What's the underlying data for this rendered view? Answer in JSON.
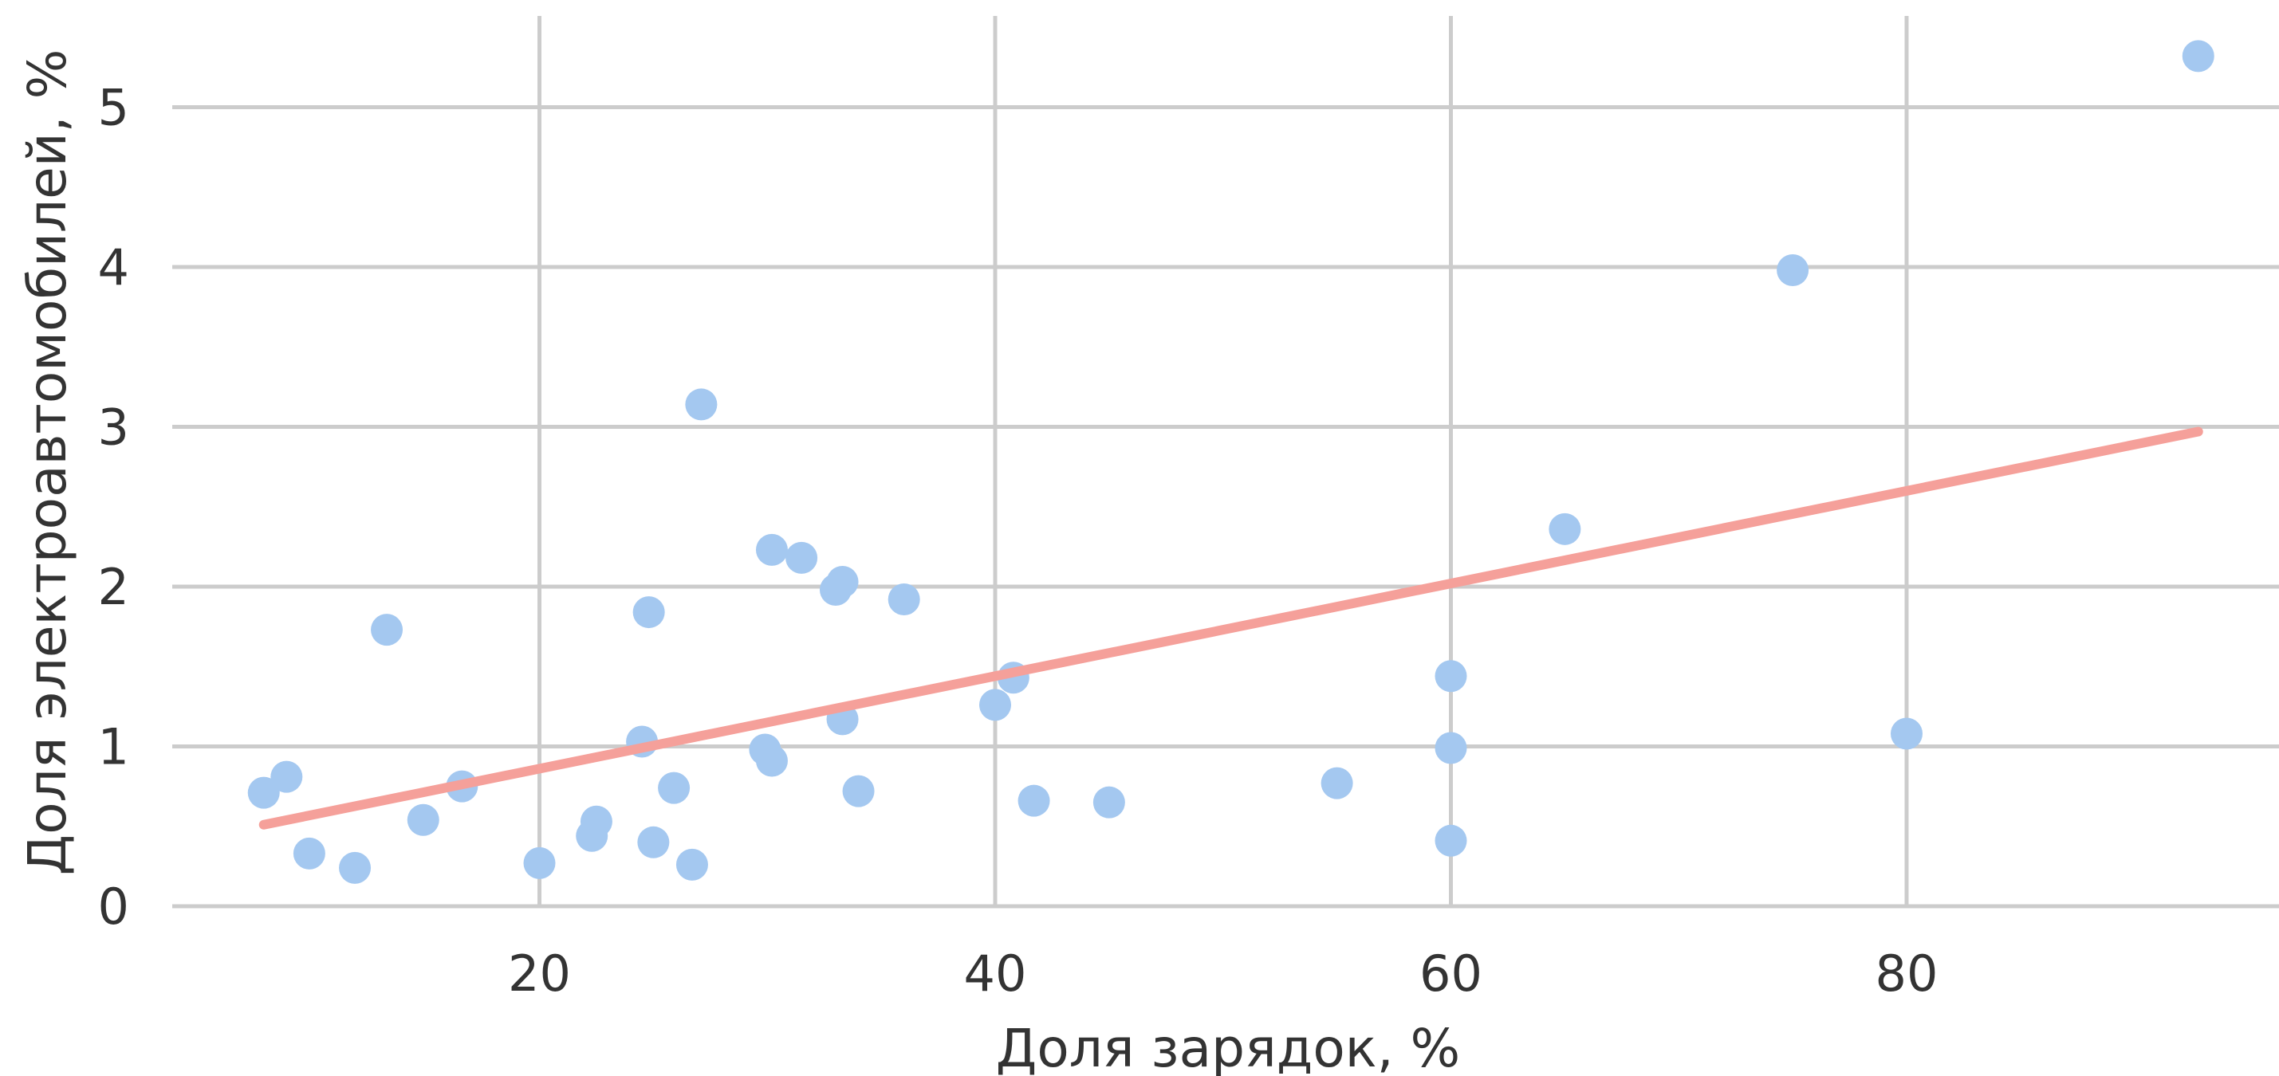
{
  "chart_data": {
    "type": "scatter",
    "title": "",
    "xlabel": "Доля зарядок, %",
    "ylabel": "Доля электроавтомобилей, %",
    "xlim": [
      4,
      96
    ],
    "ylim": [
      0,
      5.5
    ],
    "x_ticks": [
      20,
      40,
      60,
      80
    ],
    "y_ticks": [
      0,
      1,
      2,
      3,
      4,
      5
    ],
    "grid": true,
    "legend": "none",
    "colors": {
      "points": "#a4c8f0",
      "trendline": "#f5a09a",
      "grid": "#cccccc"
    },
    "series": [
      {
        "points": [
          {
            "x": 7.9,
            "y": 0.71
          },
          {
            "x": 8.9,
            "y": 0.81
          },
          {
            "x": 9.9,
            "y": 0.33
          },
          {
            "x": 11.9,
            "y": 0.24
          },
          {
            "x": 13.3,
            "y": 1.73
          },
          {
            "x": 14.9,
            "y": 0.54
          },
          {
            "x": 16.6,
            "y": 0.75
          },
          {
            "x": 20.0,
            "y": 0.27
          },
          {
            "x": 22.3,
            "y": 0.44
          },
          {
            "x": 22.5,
            "y": 0.53
          },
          {
            "x": 24.5,
            "y": 1.03
          },
          {
            "x": 24.8,
            "y": 1.84
          },
          {
            "x": 25.0,
            "y": 0.4
          },
          {
            "x": 25.9,
            "y": 0.74
          },
          {
            "x": 26.7,
            "y": 0.26
          },
          {
            "x": 27.1,
            "y": 3.14
          },
          {
            "x": 29.9,
            "y": 0.98
          },
          {
            "x": 30.2,
            "y": 0.91
          },
          {
            "x": 30.2,
            "y": 2.23
          },
          {
            "x": 31.5,
            "y": 2.18
          },
          {
            "x": 33.0,
            "y": 1.98
          },
          {
            "x": 33.3,
            "y": 2.03
          },
          {
            "x": 33.3,
            "y": 1.17
          },
          {
            "x": 34.0,
            "y": 0.72
          },
          {
            "x": 36.0,
            "y": 1.92
          },
          {
            "x": 40.0,
            "y": 1.26
          },
          {
            "x": 40.8,
            "y": 1.43
          },
          {
            "x": 41.7,
            "y": 0.66
          },
          {
            "x": 45.0,
            "y": 0.65
          },
          {
            "x": 55.0,
            "y": 0.77
          },
          {
            "x": 60.0,
            "y": 1.44
          },
          {
            "x": 60.0,
            "y": 0.99
          },
          {
            "x": 60.0,
            "y": 0.41
          },
          {
            "x": 65.0,
            "y": 2.36
          },
          {
            "x": 75.0,
            "y": 3.98
          },
          {
            "x": 80.0,
            "y": 1.08
          },
          {
            "x": 92.8,
            "y": 5.32
          }
        ]
      }
    ],
    "trendline": {
      "x": [
        7.9,
        92.8
      ],
      "y": [
        0.51,
        2.97
      ]
    }
  }
}
